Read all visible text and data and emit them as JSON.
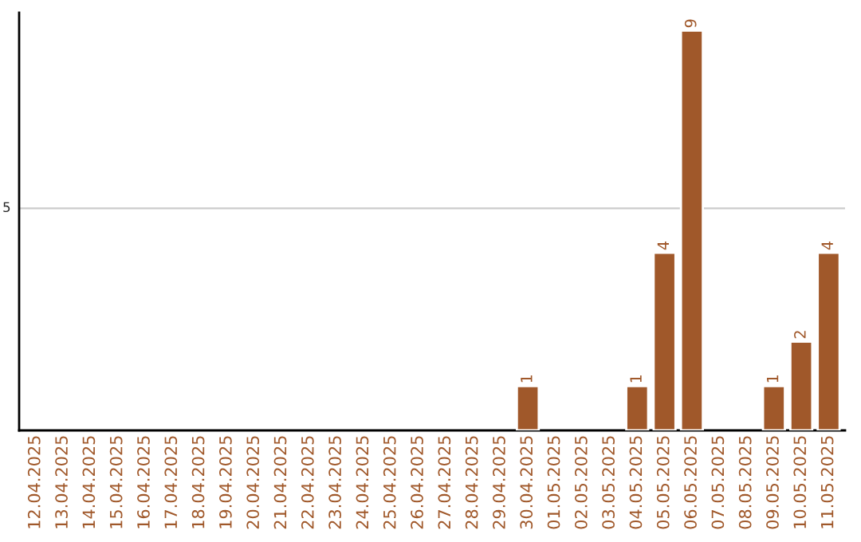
{
  "chart_data": {
    "type": "bar",
    "categories": [
      "12.04.2025",
      "13.04.2025",
      "14.04.2025",
      "15.04.2025",
      "16.04.2025",
      "17.04.2025",
      "18.04.2025",
      "19.04.2025",
      "20.04.2025",
      "21.04.2025",
      "22.04.2025",
      "23.04.2025",
      "24.04.2025",
      "25.04.2025",
      "26.04.2025",
      "27.04.2025",
      "28.04.2025",
      "29.04.2025",
      "30.04.2025",
      "01.05.2025",
      "02.05.2025",
      "03.05.2025",
      "04.05.2025",
      "05.05.2025",
      "06.05.2025",
      "07.05.2025",
      "08.05.2025",
      "09.05.2025",
      "10.05.2025",
      "11.05.2025"
    ],
    "values": [
      null,
      null,
      null,
      null,
      null,
      null,
      null,
      null,
      null,
      null,
      null,
      null,
      null,
      null,
      null,
      null,
      null,
      null,
      1,
      null,
      null,
      null,
      1,
      4,
      9,
      null,
      null,
      1,
      2,
      4
    ],
    "data_labels": true,
    "color": "#a0582a",
    "ylim": [
      0,
      9.4
    ],
    "ref_lines": [
      {
        "axis": "y",
        "value": 5,
        "label": "5",
        "color": "#cccccc"
      }
    ]
  }
}
